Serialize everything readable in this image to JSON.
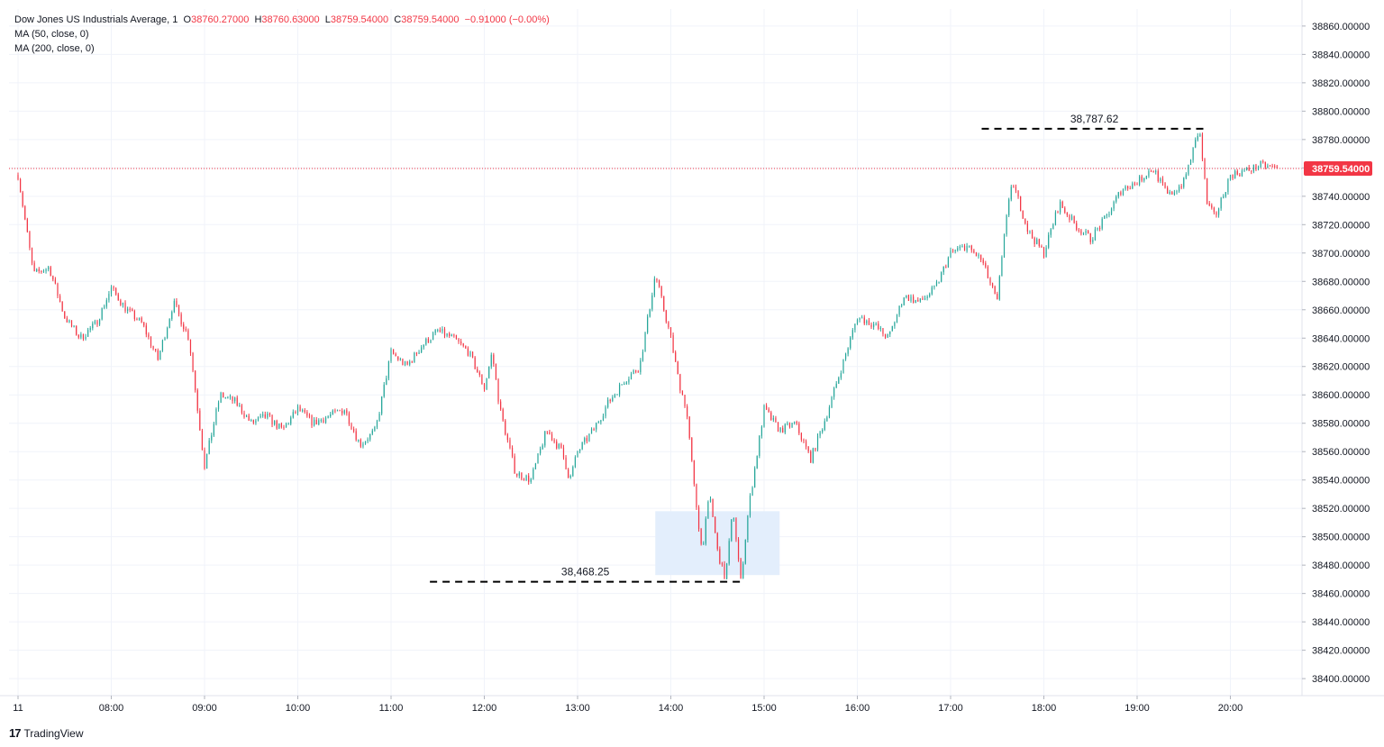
{
  "legend": {
    "symbol": "Dow Jones US Industrials Average",
    "interval": "1",
    "open_label": "O",
    "open": "38760.27000",
    "high_label": "H",
    "high": "38760.63000",
    "low_label": "L",
    "low": "38759.54000",
    "close_label": "C",
    "close": "38759.54000",
    "change": "−0.91000 (−0.00%)",
    "ma1": "MA (50, close, 0)",
    "ma2": "MA (200, close, 0)"
  },
  "branding": {
    "logo_text": "TradingView",
    "logo_mark": "17"
  },
  "colors": {
    "up": "#26a69a",
    "down": "#f23645",
    "price_line": "#f23645",
    "grid": "#f0f3fa",
    "zone": "#e3eefc"
  },
  "chart_data": {
    "type": "candlestick",
    "title": "Dow Jones US Industrials Average",
    "interval": "1",
    "x_axis_labels": [
      "11",
      "08:00",
      "09:00",
      "10:00",
      "11:00",
      "12:00",
      "13:00",
      "14:00",
      "15:00",
      "16:00",
      "17:00",
      "18:00",
      "19:00",
      "20:00"
    ],
    "y_axis_labels": [
      "38400.00000",
      "38420.00000",
      "38440.00000",
      "38460.00000",
      "38480.00000",
      "38500.00000",
      "38520.00000",
      "38540.00000",
      "38560.00000",
      "38580.00000",
      "38600.00000",
      "38620.00000",
      "38640.00000",
      "38660.00000",
      "38680.00000",
      "38700.00000",
      "38720.00000",
      "38740.00000",
      "38760.00000",
      "38780.00000",
      "38800.00000",
      "38820.00000",
      "38840.00000",
      "38860.00000"
    ],
    "ylim": [
      38388,
      38872
    ],
    "last_price": 38759.54,
    "last_price_label": "38759.54000",
    "grid": true,
    "price_path_hourly": [
      {
        "time": "07:00",
        "price": 38755
      },
      {
        "time": "07:10",
        "price": 38685
      },
      {
        "time": "07:20",
        "price": 38690
      },
      {
        "time": "07:30",
        "price": 38655
      },
      {
        "time": "07:40",
        "price": 38640
      },
      {
        "time": "07:50",
        "price": 38650
      },
      {
        "time": "08:00",
        "price": 38675
      },
      {
        "time": "08:10",
        "price": 38660
      },
      {
        "time": "08:20",
        "price": 38650
      },
      {
        "time": "08:30",
        "price": 38625
      },
      {
        "time": "08:40",
        "price": 38665
      },
      {
        "time": "08:50",
        "price": 38640
      },
      {
        "time": "09:00",
        "price": 38550
      },
      {
        "time": "09:10",
        "price": 38600
      },
      {
        "time": "09:20",
        "price": 38595
      },
      {
        "time": "09:30",
        "price": 38580
      },
      {
        "time": "09:40",
        "price": 38585
      },
      {
        "time": "09:50",
        "price": 38575
      },
      {
        "time": "10:00",
        "price": 38590
      },
      {
        "time": "10:10",
        "price": 38580
      },
      {
        "time": "10:20",
        "price": 38585
      },
      {
        "time": "10:30",
        "price": 38590
      },
      {
        "time": "10:40",
        "price": 38565
      },
      {
        "time": "10:50",
        "price": 38575
      },
      {
        "time": "11:00",
        "price": 38630
      },
      {
        "time": "11:10",
        "price": 38620
      },
      {
        "time": "11:20",
        "price": 38635
      },
      {
        "time": "11:30",
        "price": 38645
      },
      {
        "time": "11:40",
        "price": 38640
      },
      {
        "time": "11:50",
        "price": 38630
      },
      {
        "time": "12:00",
        "price": 38605
      },
      {
        "time": "12:05",
        "price": 38630
      },
      {
        "time": "12:10",
        "price": 38590
      },
      {
        "time": "12:20",
        "price": 38545
      },
      {
        "time": "12:30",
        "price": 38540
      },
      {
        "time": "12:40",
        "price": 38575
      },
      {
        "time": "12:50",
        "price": 38560
      },
      {
        "time": "12:55",
        "price": 38540
      },
      {
        "time": "13:00",
        "price": 38560
      },
      {
        "time": "13:10",
        "price": 38575
      },
      {
        "time": "13:20",
        "price": 38595
      },
      {
        "time": "13:30",
        "price": 38610
      },
      {
        "time": "13:40",
        "price": 38620
      },
      {
        "time": "13:50",
        "price": 38685
      },
      {
        "time": "14:00",
        "price": 38640
      },
      {
        "time": "14:05",
        "price": 38610
      },
      {
        "time": "14:10",
        "price": 38590
      },
      {
        "time": "14:15",
        "price": 38535
      },
      {
        "time": "14:20",
        "price": 38490
      },
      {
        "time": "14:25",
        "price": 38530
      },
      {
        "time": "14:30",
        "price": 38490
      },
      {
        "time": "14:35",
        "price": 38470
      },
      {
        "time": "14:40",
        "price": 38520
      },
      {
        "time": "14:45",
        "price": 38468.25
      },
      {
        "time": "14:50",
        "price": 38520
      },
      {
        "time": "15:00",
        "price": 38590
      },
      {
        "time": "15:10",
        "price": 38575
      },
      {
        "time": "15:20",
        "price": 38580
      },
      {
        "time": "15:30",
        "price": 38555
      },
      {
        "time": "15:40",
        "price": 38585
      },
      {
        "time": "15:50",
        "price": 38620
      },
      {
        "time": "16:00",
        "price": 38655
      },
      {
        "time": "16:10",
        "price": 38650
      },
      {
        "time": "16:20",
        "price": 38640
      },
      {
        "time": "16:30",
        "price": 38670
      },
      {
        "time": "16:40",
        "price": 38665
      },
      {
        "time": "16:50",
        "price": 38675
      },
      {
        "time": "17:00",
        "price": 38700
      },
      {
        "time": "17:10",
        "price": 38705
      },
      {
        "time": "17:20",
        "price": 38695
      },
      {
        "time": "17:30",
        "price": 38665
      },
      {
        "time": "17:35",
        "price": 38720
      },
      {
        "time": "17:40",
        "price": 38750
      },
      {
        "time": "17:50",
        "price": 38715
      },
      {
        "time": "18:00",
        "price": 38700
      },
      {
        "time": "18:10",
        "price": 38735
      },
      {
        "time": "18:20",
        "price": 38720
      },
      {
        "time": "18:30",
        "price": 38710
      },
      {
        "time": "18:40",
        "price": 38725
      },
      {
        "time": "18:50",
        "price": 38745
      },
      {
        "time": "19:00",
        "price": 38750
      },
      {
        "time": "19:10",
        "price": 38760
      },
      {
        "time": "19:20",
        "price": 38740
      },
      {
        "time": "19:30",
        "price": 38750
      },
      {
        "time": "19:40",
        "price": 38787.62
      },
      {
        "time": "19:45",
        "price": 38735
      },
      {
        "time": "19:50",
        "price": 38725
      },
      {
        "time": "20:00",
        "price": 38755
      },
      {
        "time": "20:10",
        "price": 38758
      },
      {
        "time": "20:20",
        "price": 38762
      },
      {
        "time": "20:30",
        "price": 38759.54
      }
    ],
    "annotations": [
      {
        "label": "38,787.62",
        "price": 38787.62,
        "from": "17:20",
        "to": "19:45"
      },
      {
        "label": "38,468.25",
        "price": 38468.25,
        "from": "11:25",
        "to": "14:45"
      }
    ],
    "highlight_zone": {
      "from": "13:50",
      "to": "15:10",
      "price_low": 38473,
      "price_high": 38518
    }
  }
}
